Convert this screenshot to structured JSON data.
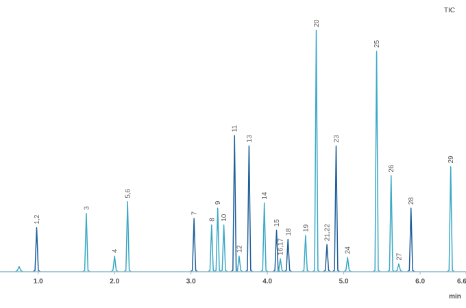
{
  "chart_data": {
    "type": "line",
    "title": "",
    "trace_label": "TIC",
    "xlabel": "min",
    "ylabel": "",
    "xlim": [
      0.5,
      6.6
    ],
    "ylim": [
      0,
      100
    ],
    "x_ticks": [
      1.0,
      2.0,
      3.0,
      4.0,
      5.0,
      6.0,
      6.6
    ],
    "x_tick_labels": [
      "1.0",
      "2.0",
      "3.0",
      "4.0",
      "5.0",
      "6.0",
      "6.6"
    ],
    "grid": false,
    "legend": "none",
    "colors": {
      "light": "#3ba8c4",
      "dark": "#1f5f99",
      "axis": "#8fb6c8"
    },
    "peaks": [
      {
        "label": "",
        "rt": 0.75,
        "height": 2,
        "shade": "light"
      },
      {
        "label": "1,2",
        "rt": 0.98,
        "height": 17,
        "shade": "dark"
      },
      {
        "label": "3",
        "rt": 1.63,
        "height": 22.5,
        "shade": "light"
      },
      {
        "label": "4",
        "rt": 2.0,
        "height": 6,
        "shade": "light"
      },
      {
        "label": "5,6",
        "rt": 2.17,
        "height": 27,
        "shade": "light"
      },
      {
        "label": "7",
        "rt": 3.04,
        "height": 20.5,
        "shade": "dark"
      },
      {
        "label": "8",
        "rt": 3.27,
        "height": 18,
        "shade": "light"
      },
      {
        "label": "9",
        "rt": 3.35,
        "height": 24.5,
        "shade": "light"
      },
      {
        "label": "10",
        "rt": 3.43,
        "height": 18,
        "shade": "light"
      },
      {
        "label": "11",
        "rt": 3.57,
        "height": 52.5,
        "shade": "dark"
      },
      {
        "label": "12",
        "rt": 3.63,
        "height": 6,
        "shade": "light"
      },
      {
        "label": "13",
        "rt": 3.76,
        "height": 48.5,
        "shade": "dark"
      },
      {
        "label": "14",
        "rt": 3.96,
        "height": 26.5,
        "shade": "light"
      },
      {
        "label": "15",
        "rt": 4.12,
        "height": 16,
        "shade": "dark"
      },
      {
        "label": "16,17",
        "rt": 4.17,
        "height": 5,
        "shade": "light"
      },
      {
        "label": "18",
        "rt": 4.27,
        "height": 12.5,
        "shade": "dark"
      },
      {
        "label": "19",
        "rt": 4.5,
        "height": 14,
        "shade": "light"
      },
      {
        "label": "20",
        "rt": 4.64,
        "height": 93,
        "shade": "light"
      },
      {
        "label": "21,22",
        "rt": 4.78,
        "height": 10.5,
        "shade": "dark"
      },
      {
        "label": "23",
        "rt": 4.9,
        "height": 48.5,
        "shade": "dark"
      },
      {
        "label": "24",
        "rt": 5.05,
        "height": 5.5,
        "shade": "light"
      },
      {
        "label": "25",
        "rt": 5.43,
        "height": 85,
        "shade": "light"
      },
      {
        "label": "26",
        "rt": 5.62,
        "height": 37,
        "shade": "light"
      },
      {
        "label": "27",
        "rt": 5.72,
        "height": 3,
        "shade": "light"
      },
      {
        "label": "28",
        "rt": 5.88,
        "height": 24.5,
        "shade": "dark"
      },
      {
        "label": "29",
        "rt": 6.4,
        "height": 40.5,
        "shade": "light"
      }
    ]
  }
}
